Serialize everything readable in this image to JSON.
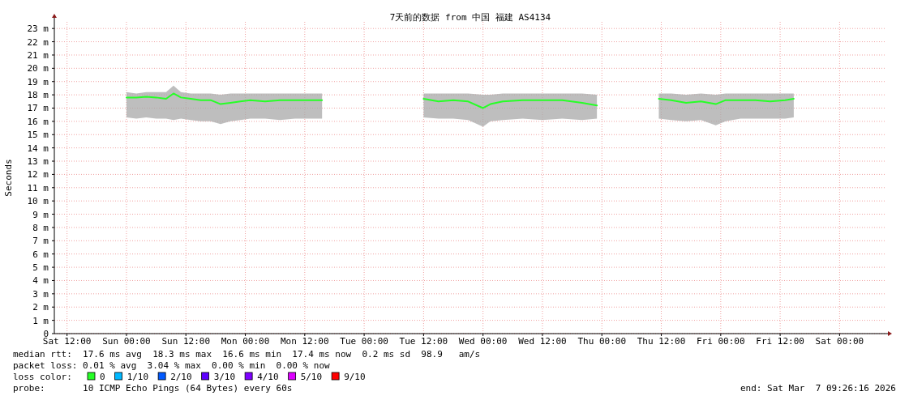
{
  "chart_data": {
    "type": "line",
    "title": "7天前的数据 from 中国 福建 AS4134",
    "ylabel": "Seconds",
    "xlim": [
      "2026-02-28T09:26",
      "2026-03-07T09:26"
    ],
    "xticks": [
      {
        "value": "2026-02-28T12:00",
        "label": "Sat 12:00"
      },
      {
        "value": "2026-03-01T00:00",
        "label": "Sun 00:00"
      },
      {
        "value": "2026-03-01T12:00",
        "label": "Sun 12:00"
      },
      {
        "value": "2026-03-02T00:00",
        "label": "Mon 00:00"
      },
      {
        "value": "2026-03-02T12:00",
        "label": "Mon 12:00"
      },
      {
        "value": "2026-03-03T00:00",
        "label": "Tue 00:00"
      },
      {
        "value": "2026-03-03T12:00",
        "label": "Tue 12:00"
      },
      {
        "value": "2026-03-04T00:00",
        "label": "Wed 00:00"
      },
      {
        "value": "2026-03-04T12:00",
        "label": "Wed 12:00"
      },
      {
        "value": "2026-03-05T00:00",
        "label": "Thu 00:00"
      },
      {
        "value": "2026-03-05T12:00",
        "label": "Thu 12:00"
      },
      {
        "value": "2026-03-06T00:00",
        "label": "Fri 00:00"
      },
      {
        "value": "2026-03-06T12:00",
        "label": "Fri 12:00"
      },
      {
        "value": "2026-03-07T00:00",
        "label": "Sat 00:00"
      }
    ],
    "ylim": [
      0,
      23.5
    ],
    "yticks": [
      0,
      {
        "value": 1,
        "label": "1 m"
      },
      {
        "value": 2,
        "label": "2 m"
      },
      {
        "value": 3,
        "label": "3 m"
      },
      {
        "value": 4,
        "label": "4 m"
      },
      {
        "value": 5,
        "label": "5 m"
      },
      {
        "value": 6,
        "label": "6 m"
      },
      {
        "value": 7,
        "label": "7 m"
      },
      {
        "value": 8,
        "label": "8 m"
      },
      {
        "value": 9,
        "label": "9 m"
      },
      {
        "value": 10,
        "label": "10 m"
      },
      {
        "value": 11,
        "label": "11 m"
      },
      {
        "value": 12,
        "label": "12 m"
      },
      {
        "value": 13,
        "label": "13 m"
      },
      {
        "value": 14,
        "label": "14 m"
      },
      {
        "value": 15,
        "label": "15 m"
      },
      {
        "value": 16,
        "label": "16 m"
      },
      {
        "value": 17,
        "label": "17 m"
      },
      {
        "value": 18,
        "label": "18 m"
      },
      {
        "value": 19,
        "label": "19 m"
      },
      {
        "value": 20,
        "label": "20 m"
      },
      {
        "value": 21,
        "label": "21 m"
      },
      {
        "value": 22,
        "label": "22 m"
      },
      {
        "value": 23,
        "label": "23 m"
      }
    ],
    "grid": true,
    "legend": "bottom",
    "legend_title": "loss color:",
    "marker": "none",
    "line_style": "solid",
    "series": [
      {
        "name": "0",
        "color": "#26ff26",
        "x": [
          "2026-03-01T00:00",
          "2026-03-01T02:00",
          "2026-03-01T04:00",
          "2026-03-01T06:00",
          "2026-03-01T08:00",
          "2026-03-01T09:30",
          "2026-03-01T11:00",
          "2026-03-01T13:00",
          "2026-03-01T15:00",
          "2026-03-01T17:00",
          "2026-03-01T19:00",
          "2026-03-01T21:00",
          "2026-03-01T23:00",
          "2026-03-02T01:00",
          "2026-03-02T04:00",
          "2026-03-02T07:00",
          "2026-03-02T10:00",
          "2026-03-02T13:00",
          "2026-03-02T15:30",
          "2026-03-03T12:00",
          "2026-03-03T15:00",
          "2026-03-03T18:00",
          "2026-03-03T21:00",
          "2026-03-04T00:00",
          "2026-03-04T01:30",
          "2026-03-04T04:00",
          "2026-03-04T08:00",
          "2026-03-04T12:00",
          "2026-03-04T16:00",
          "2026-03-04T20:00",
          "2026-03-04T23:00",
          "2026-03-05T11:30",
          "2026-03-05T14:00",
          "2026-03-05T17:00",
          "2026-03-05T20:00",
          "2026-03-05T23:00",
          "2026-03-06T01:00",
          "2026-03-06T04:00",
          "2026-03-06T07:00",
          "2026-03-06T10:00",
          "2026-03-06T13:00",
          "2026-03-06T14:45"
        ],
        "values": [
          17.8,
          17.8,
          17.85,
          17.8,
          17.7,
          18.1,
          17.8,
          17.7,
          17.6,
          17.6,
          17.3,
          17.4,
          17.5,
          17.6,
          17.5,
          17.6,
          17.6,
          17.6,
          17.6,
          17.7,
          17.5,
          17.6,
          17.5,
          17.0,
          17.3,
          17.5,
          17.6,
          17.6,
          17.6,
          17.4,
          17.2,
          17.7,
          17.6,
          17.4,
          17.5,
          17.3,
          17.6,
          17.6,
          17.6,
          17.5,
          17.6,
          17.7
        ],
        "lower": [
          16.3,
          16.2,
          16.3,
          16.2,
          16.2,
          16.1,
          16.2,
          16.1,
          16.0,
          16.0,
          15.8,
          16.0,
          16.1,
          16.2,
          16.2,
          16.1,
          16.2,
          16.2,
          16.2,
          16.3,
          16.2,
          16.2,
          16.1,
          15.6,
          16.0,
          16.1,
          16.2,
          16.1,
          16.2,
          16.1,
          16.2,
          16.2,
          16.1,
          16.0,
          16.1,
          15.7,
          16.0,
          16.2,
          16.2,
          16.2,
          16.2,
          16.3
        ],
        "upper": [
          18.2,
          18.1,
          18.2,
          18.2,
          18.2,
          18.7,
          18.2,
          18.1,
          18.1,
          18.1,
          18.0,
          18.1,
          18.1,
          18.1,
          18.1,
          18.1,
          18.1,
          18.1,
          18.1,
          18.1,
          18.1,
          18.1,
          18.1,
          18.0,
          18.0,
          18.1,
          18.1,
          18.1,
          18.1,
          18.1,
          18.0,
          18.1,
          18.1,
          18.0,
          18.1,
          18.0,
          18.1,
          18.1,
          18.1,
          18.1,
          18.1,
          18.1
        ]
      },
      {
        "name": "1/10",
        "color": "#00b8ff"
      },
      {
        "name": "2/10",
        "color": "#0059ff"
      },
      {
        "name": "3/10",
        "color": "#5e00ff"
      },
      {
        "name": "4/10",
        "color": "#7e00ff"
      },
      {
        "name": "5/10",
        "color": "#dd00ff"
      },
      {
        "name": "9/10",
        "color": "#ff0000"
      }
    ],
    "annotations": [
      "median rtt:  17.6 ms avg  18.3 ms max  16.6 ms min  17.4 ms now  0.2 ms sd  98.9   am/s",
      "packet loss: 0.01 % avg  3.04 % max  0.00 % min  0.00 % now",
      "probe:       10 ICMP Echo Pings (64 Bytes) every 60s",
      "end: Sat Mar  7 09:26:16 2026"
    ]
  }
}
